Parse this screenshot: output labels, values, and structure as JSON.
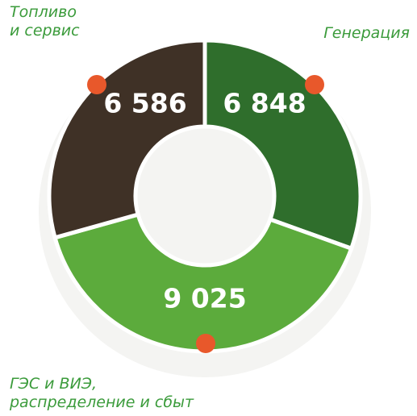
{
  "chart_data": {
    "type": "pie",
    "donut": true,
    "categories": [
      "Генерация",
      "ГЭС и ВИЭ,\nраспределение и сбыт",
      "Топливо\nи сервис"
    ],
    "values": [
      6848,
      9025,
      6586
    ],
    "value_labels": [
      "6 848",
      "9 025",
      "6 586"
    ],
    "colors": [
      "#2f6e2c",
      "#5cab3c",
      "#3f3126"
    ]
  }
}
